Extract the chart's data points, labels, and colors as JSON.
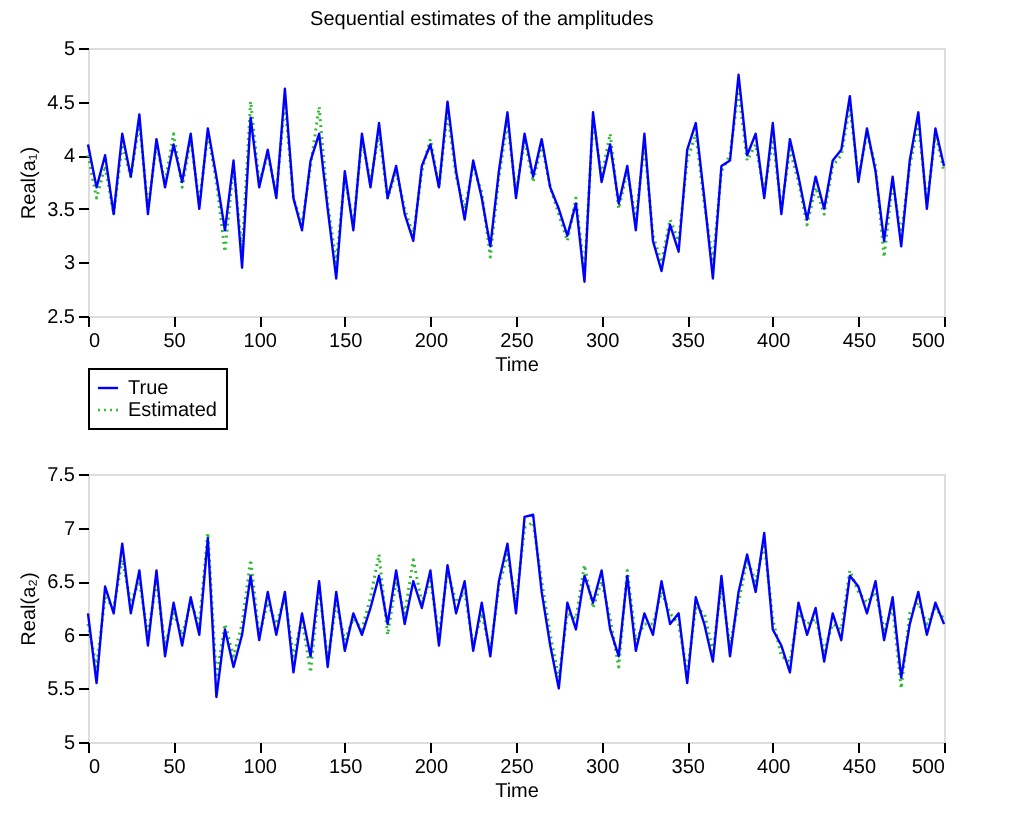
{
  "chart_data": [
    {
      "type": "line",
      "title": "Sequential estimates of the amplitudes",
      "xlabel": "Time",
      "ylabel": "Real(a₁)",
      "legend": "bottom left",
      "x": [
        0,
        5,
        10,
        15,
        20,
        25,
        30,
        35,
        40,
        45,
        50,
        55,
        60,
        65,
        70,
        75,
        80,
        85,
        90,
        95,
        100,
        105,
        110,
        115,
        120,
        125,
        130,
        135,
        140,
        145,
        150,
        155,
        160,
        165,
        170,
        175,
        180,
        185,
        190,
        195,
        200,
        205,
        210,
        215,
        220,
        225,
        230,
        235,
        240,
        245,
        250,
        255,
        260,
        265,
        270,
        275,
        280,
        285,
        290,
        295,
        300,
        305,
        310,
        315,
        320,
        325,
        330,
        335,
        340,
        345,
        350,
        355,
        360,
        365,
        370,
        375,
        380,
        385,
        390,
        395,
        400,
        405,
        410,
        415,
        420,
        425,
        430,
        435,
        440,
        445,
        450,
        455,
        460,
        465,
        470,
        475,
        480,
        485,
        490,
        495,
        500
      ],
      "xlim": [
        0,
        500
      ],
      "xticks": [
        0,
        50,
        100,
        150,
        200,
        250,
        300,
        350,
        400,
        450,
        500
      ],
      "ylim": [
        2.5,
        5
      ],
      "yticks": [
        2.5,
        3,
        3.5,
        4,
        4.5,
        5
      ],
      "series": [
        {
          "name": "True",
          "color": "#0000ff",
          "line_style": "solid",
          "values": [
            4.1,
            3.7,
            4.0,
            3.45,
            4.2,
            3.8,
            4.38,
            3.45,
            4.15,
            3.7,
            4.1,
            3.75,
            4.2,
            3.5,
            4.25,
            3.8,
            3.3,
            3.95,
            2.95,
            4.35,
            3.7,
            4.05,
            3.6,
            4.62,
            3.6,
            3.3,
            3.95,
            4.2,
            3.5,
            2.85,
            3.85,
            3.3,
            4.2,
            3.7,
            4.3,
            3.6,
            3.9,
            3.45,
            3.2,
            3.9,
            4.1,
            3.7,
            4.5,
            3.85,
            3.4,
            3.95,
            3.6,
            3.15,
            3.85,
            4.4,
            3.6,
            4.2,
            3.8,
            4.15,
            3.7,
            3.5,
            3.25,
            3.55,
            2.82,
            4.4,
            3.75,
            4.1,
            3.55,
            3.9,
            3.3,
            4.2,
            3.2,
            2.92,
            3.35,
            3.1,
            4.05,
            4.3,
            3.6,
            2.85,
            3.9,
            3.95,
            4.75,
            4.0,
            4.2,
            3.6,
            4.3,
            3.45,
            4.15,
            3.8,
            3.4,
            3.8,
            3.5,
            3.95,
            4.05,
            4.55,
            3.75,
            4.25,
            3.85,
            3.2,
            3.8,
            3.15,
            3.95,
            4.4,
            3.5,
            4.25,
            3.9
          ]
        },
        {
          "name": "Estimated",
          "color": "#33bb33",
          "line_style": "dotted",
          "values": [
            4.0,
            3.6,
            3.9,
            3.45,
            4.1,
            3.8,
            4.3,
            3.5,
            4.1,
            3.75,
            4.2,
            3.7,
            4.15,
            3.55,
            4.2,
            3.75,
            3.1,
            3.9,
            3.1,
            4.5,
            3.75,
            4.0,
            3.65,
            4.5,
            3.6,
            3.35,
            3.9,
            4.45,
            3.55,
            3.0,
            3.8,
            3.35,
            4.15,
            3.75,
            4.2,
            3.6,
            3.85,
            3.5,
            3.25,
            3.85,
            4.15,
            3.7,
            4.4,
            3.8,
            3.5,
            3.9,
            3.65,
            3.05,
            3.8,
            4.3,
            3.65,
            4.15,
            3.75,
            4.1,
            3.7,
            3.45,
            3.2,
            3.6,
            2.9,
            4.35,
            3.8,
            4.2,
            3.5,
            3.85,
            3.4,
            4.1,
            3.25,
            3.0,
            3.4,
            3.2,
            3.95,
            4.2,
            3.55,
            3.0,
            3.85,
            4.0,
            4.6,
            3.95,
            4.1,
            3.65,
            4.15,
            3.5,
            4.05,
            3.75,
            3.35,
            3.7,
            3.45,
            3.9,
            4.0,
            4.45,
            3.8,
            4.2,
            3.9,
            3.05,
            3.75,
            3.25,
            3.9,
            4.3,
            3.55,
            4.2,
            3.85
          ]
        }
      ]
    },
    {
      "type": "line",
      "xlabel": "Time",
      "ylabel": "Real(a₂)",
      "legend": false,
      "x": [
        0,
        5,
        10,
        15,
        20,
        25,
        30,
        35,
        40,
        45,
        50,
        55,
        60,
        65,
        70,
        75,
        80,
        85,
        90,
        95,
        100,
        105,
        110,
        115,
        120,
        125,
        130,
        135,
        140,
        145,
        150,
        155,
        160,
        165,
        170,
        175,
        180,
        185,
        190,
        195,
        200,
        205,
        210,
        215,
        220,
        225,
        230,
        235,
        240,
        245,
        250,
        255,
        260,
        265,
        270,
        275,
        280,
        285,
        290,
        295,
        300,
        305,
        310,
        315,
        320,
        325,
        330,
        335,
        340,
        345,
        350,
        355,
        360,
        365,
        370,
        375,
        380,
        385,
        390,
        395,
        400,
        405,
        410,
        415,
        420,
        425,
        430,
        435,
        440,
        445,
        450,
        455,
        460,
        465,
        470,
        475,
        480,
        485,
        490,
        495,
        500
      ],
      "xlim": [
        0,
        500
      ],
      "xticks": [
        0,
        50,
        100,
        150,
        200,
        250,
        300,
        350,
        400,
        450,
        500
      ],
      "ylim": [
        5,
        7.5
      ],
      "yticks": [
        5,
        5.5,
        6,
        6.5,
        7,
        7.5
      ],
      "series": [
        {
          "color": "#0000ff",
          "line_style": "solid",
          "values": [
            6.2,
            5.55,
            6.45,
            6.2,
            6.85,
            6.2,
            6.6,
            5.9,
            6.6,
            5.8,
            6.3,
            5.9,
            6.35,
            6.0,
            6.9,
            5.42,
            6.05,
            5.7,
            6.0,
            6.55,
            5.95,
            6.4,
            6.0,
            6.4,
            5.65,
            6.2,
            5.8,
            6.5,
            5.7,
            6.4,
            5.85,
            6.2,
            6.0,
            6.25,
            6.55,
            6.1,
            6.6,
            6.1,
            6.5,
            6.25,
            6.6,
            5.9,
            6.65,
            6.2,
            6.5,
            5.85,
            6.3,
            5.8,
            6.5,
            6.85,
            6.2,
            7.1,
            7.12,
            6.4,
            5.9,
            5.5,
            6.3,
            6.05,
            6.55,
            6.3,
            6.6,
            6.05,
            5.8,
            6.55,
            5.85,
            6.2,
            6.0,
            6.5,
            6.1,
            6.2,
            5.55,
            6.35,
            6.1,
            5.75,
            6.55,
            5.8,
            6.4,
            6.75,
            6.4,
            6.95,
            6.05,
            5.9,
            5.65,
            6.3,
            6.0,
            6.25,
            5.75,
            6.2,
            5.95,
            6.55,
            6.45,
            6.2,
            6.5,
            5.95,
            6.35,
            5.6,
            6.1,
            6.4,
            6.0,
            6.3,
            6.1
          ]
        },
        {
          "color": "#33bb33",
          "line_style": "dotted",
          "values": [
            6.1,
            5.7,
            6.35,
            6.25,
            6.7,
            6.3,
            6.5,
            6.0,
            6.5,
            5.9,
            6.2,
            6.0,
            6.3,
            6.1,
            6.95,
            5.6,
            6.1,
            5.8,
            6.1,
            6.7,
            6.0,
            6.3,
            6.1,
            6.35,
            5.8,
            6.15,
            5.65,
            6.45,
            5.75,
            6.3,
            5.95,
            6.15,
            6.05,
            6.35,
            6.75,
            6.0,
            6.5,
            6.2,
            6.7,
            6.3,
            6.5,
            6.0,
            6.6,
            6.3,
            6.4,
            5.9,
            6.2,
            5.85,
            6.45,
            6.75,
            6.3,
            7.0,
            7.05,
            6.5,
            6.0,
            5.6,
            6.2,
            6.15,
            6.65,
            6.25,
            6.5,
            6.15,
            5.7,
            6.6,
            5.95,
            6.1,
            6.1,
            6.4,
            6.2,
            6.1,
            5.65,
            6.25,
            6.2,
            5.85,
            6.45,
            5.9,
            6.3,
            6.7,
            6.5,
            6.85,
            6.15,
            5.8,
            5.75,
            6.2,
            6.1,
            6.15,
            5.85,
            6.1,
            6.05,
            6.6,
            6.4,
            6.3,
            6.4,
            6.05,
            6.25,
            5.5,
            6.2,
            6.3,
            6.1,
            6.25,
            6.15
          ]
        }
      ]
    }
  ]
}
